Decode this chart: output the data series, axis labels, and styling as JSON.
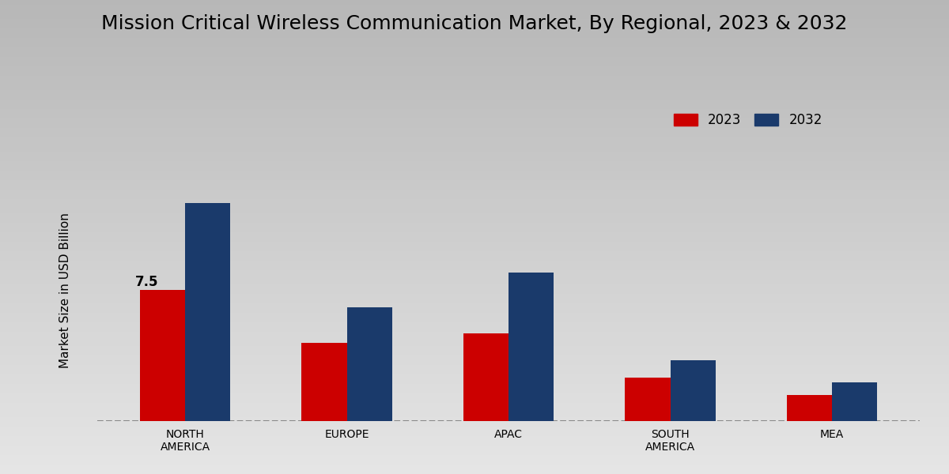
{
  "title": "Mission Critical Wireless Communication Market, By Regional, 2023 & 2032",
  "ylabel": "Market Size in USD Billion",
  "categories": [
    "NORTH\nAMERICA",
    "EUROPE",
    "APAC",
    "SOUTH\nAMERICA",
    "MEA"
  ],
  "values_2023": [
    7.5,
    4.5,
    5.0,
    2.5,
    1.5
  ],
  "values_2032": [
    12.5,
    6.5,
    8.5,
    3.5,
    2.2
  ],
  "color_2023": "#CC0000",
  "color_2032": "#1A3A6B",
  "annotation_text": "7.5",
  "bar_width": 0.28,
  "ylim": [
    0,
    15
  ],
  "legend_labels": [
    "2023",
    "2032"
  ],
  "title_fontsize": 18,
  "label_fontsize": 11,
  "tick_fontsize": 10,
  "bg_color_light": "#E8E8E8",
  "bg_color_dark": "#C0C0C0"
}
